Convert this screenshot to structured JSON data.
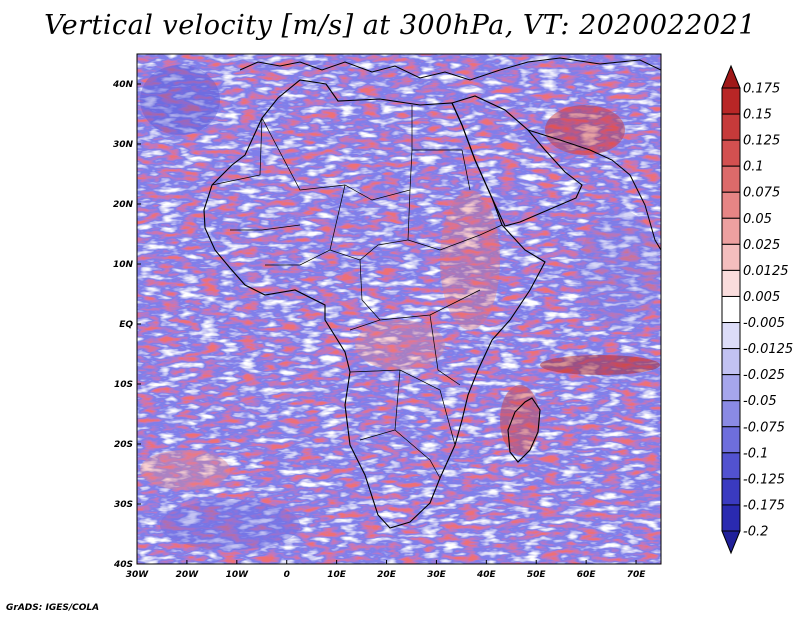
{
  "title": "Vertical velocity [m/s] at 300hPa, VT: 2020022021",
  "credit": "GrADS: IGES/COLA",
  "map": {
    "lon_range": [
      -30,
      75
    ],
    "lat_range": [
      -40,
      45
    ],
    "lat_labels": [
      "40N",
      "30N",
      "20N",
      "10N",
      "EQ",
      "10S",
      "20S",
      "30S",
      "40S"
    ],
    "lon_labels": [
      "30W",
      "20W",
      "10W",
      "0",
      "10E",
      "20E",
      "30E",
      "40E",
      "50E",
      "60E",
      "70E"
    ]
  },
  "colorbar": {
    "labels": [
      "0.175",
      "0.15",
      "0.125",
      "0.1",
      "0.075",
      "0.05",
      "0.025",
      "0.0125",
      "0.005",
      "-0.005",
      "-0.0125",
      "-0.025",
      "-0.05",
      "-0.075",
      "-0.1",
      "-0.125",
      "-0.175",
      "-0.2"
    ],
    "colors": [
      "#a01818",
      "#b82626",
      "#c63a3a",
      "#d35050",
      "#dd6a6a",
      "#e68585",
      "#eda0a0",
      "#f4bebe",
      "#fadddd",
      "#ffffff",
      "#dcdcf8",
      "#c2c2f2",
      "#a6a6ec",
      "#8a8ae4",
      "#6e6edc",
      "#5252d0",
      "#3a3ac0",
      "#2a2ab0",
      "#20209a"
    ]
  }
}
